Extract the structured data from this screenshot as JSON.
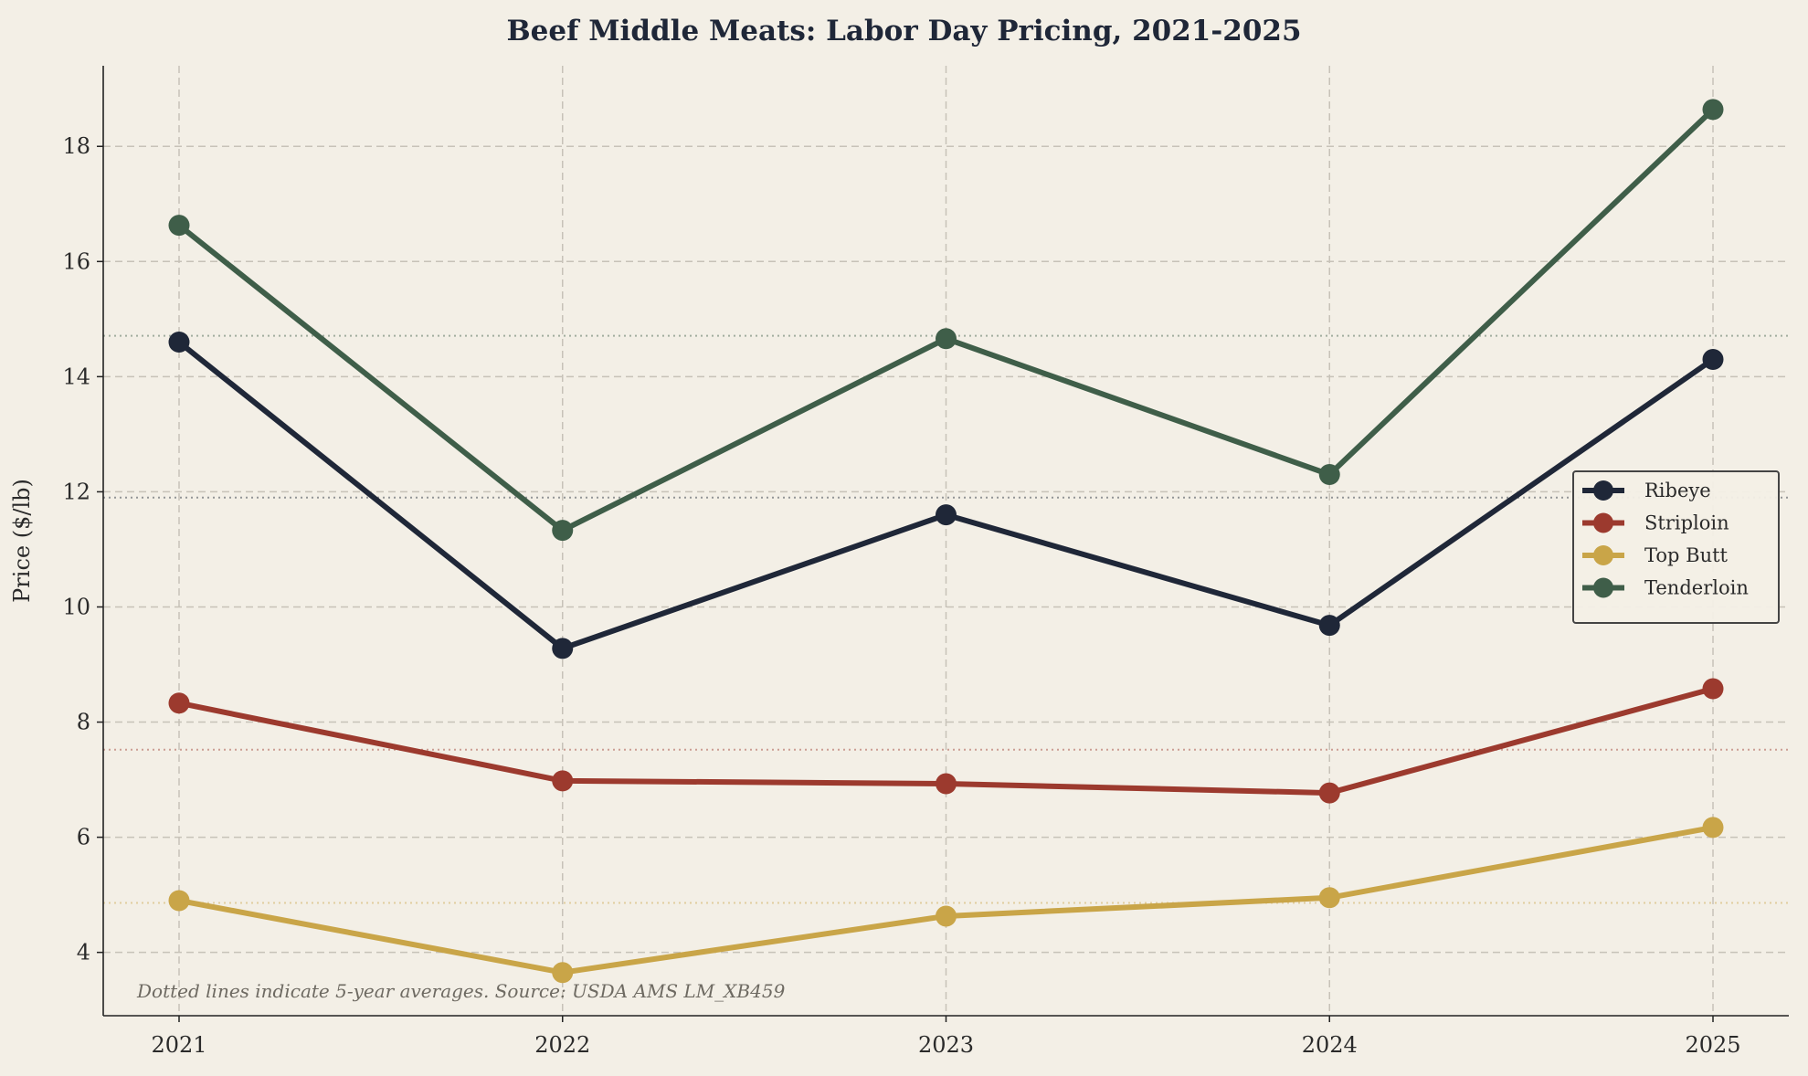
{
  "chart_data": {
    "type": "line",
    "title": "Beef Middle Meats: Labor Day Pricing, 2021-2025",
    "xlabel": "",
    "ylabel": "Price ($/lb)",
    "x": [
      "2021",
      "2022",
      "2023",
      "2024",
      "2025"
    ],
    "ylim": [
      2.9,
      19.4
    ],
    "yticks": [
      4,
      6,
      8,
      10,
      12,
      14,
      16,
      18
    ],
    "grid": true,
    "legend_position": "center-right",
    "series": [
      {
        "name": "Ribeye",
        "color": "#1f2738",
        "values": [
          14.6,
          9.28,
          11.6,
          9.68,
          14.3
        ],
        "average": 11.9
      },
      {
        "name": "Striploin",
        "color": "#9c3a2e",
        "values": [
          8.33,
          6.98,
          6.93,
          6.77,
          8.58
        ],
        "average": 7.52
      },
      {
        "name": "Top Butt",
        "color": "#c9a548",
        "values": [
          4.9,
          3.65,
          4.63,
          4.95,
          6.17
        ],
        "average": 4.86
      },
      {
        "name": "Tenderloin",
        "color": "#3f5e49",
        "values": [
          16.63,
          11.33,
          14.66,
          12.3,
          18.64
        ],
        "average": 14.71
      }
    ],
    "annotation": "Dotted lines indicate 5-year averages. Source: USDA AMS LM_XB459"
  }
}
